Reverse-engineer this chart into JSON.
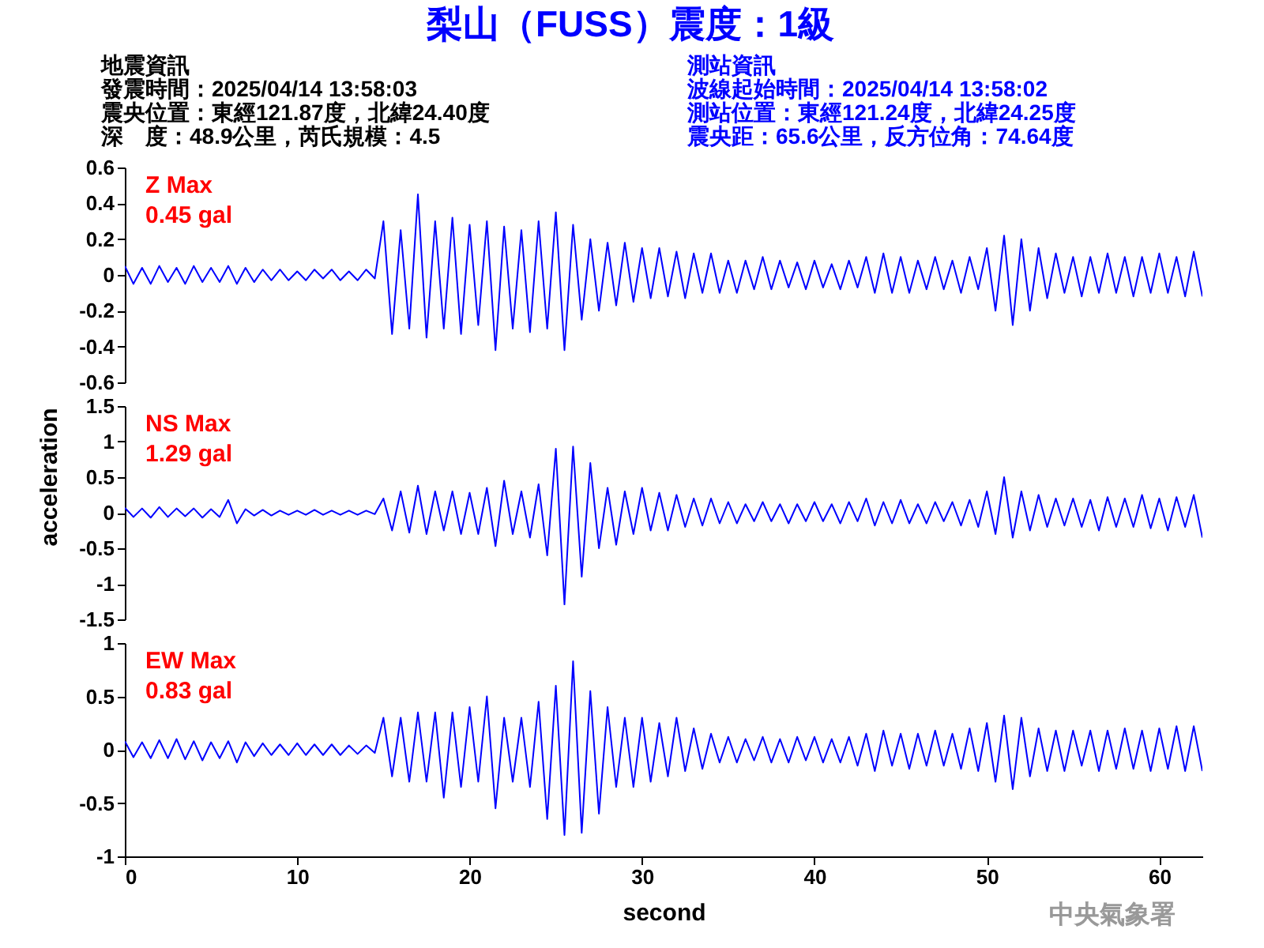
{
  "chart_data": [
    {
      "type": "line",
      "title": "梨山（FUSS）震度：1級",
      "annotations": [
        "地震資訊",
        "發震時間：2025/04/14 13:58:03",
        "震央位置：東經121.87度，北緯24.40度",
        "深　度：48.9公里，芮氏規模：4.5",
        "測站資訊",
        "波線起始時間：2025/04/14 13:58:02",
        "測站位置：東經121.24度，北緯24.25度",
        "震央距：65.6公里，反方位角：74.64度",
        "Z Max",
        "0.45 gal"
      ],
      "ylim": [
        -0.6,
        0.6
      ],
      "yticks": [
        -0.6,
        -0.4,
        -0.2,
        0,
        0.2,
        0.4,
        0.6
      ],
      "tick_labels": "y",
      "x": [
        0,
        0.5,
        1,
        1.5,
        2,
        2.5,
        3,
        3.5,
        4,
        4.5,
        5,
        5.5,
        6,
        6.5,
        7,
        7.5,
        8,
        8.5,
        9,
        9.5,
        10,
        10.5,
        11,
        11.5,
        12,
        12.5,
        13,
        13.5,
        14,
        14.5,
        15,
        15.5,
        16,
        16.5,
        17,
        17.5,
        18,
        18.5,
        19,
        19.5,
        20,
        20.5,
        21,
        21.5,
        22,
        22.5,
        23,
        23.5,
        24,
        24.5,
        25,
        25.5,
        26,
        26.5,
        27,
        27.5,
        28,
        28.5,
        29,
        29.5,
        30,
        30.5,
        31,
        31.5,
        32,
        32.5,
        33,
        33.5,
        34,
        34.5,
        35,
        35.5,
        36,
        36.5,
        37,
        37.5,
        38,
        38.5,
        39,
        39.5,
        40,
        40.5,
        41,
        41.5,
        42,
        42.5,
        43,
        43.5,
        44,
        44.5,
        45,
        45.5,
        46,
        46.5,
        47,
        47.5,
        48,
        48.5,
        49,
        49.5,
        50,
        50.5,
        51,
        51.5,
        52,
        52.5,
        53,
        53.5,
        54,
        54.5,
        55,
        55.5,
        56,
        56.5,
        57,
        57.5,
        58,
        58.5,
        59,
        59.5,
        60,
        60.5,
        61,
        61.5,
        62,
        62.5
      ],
      "series": [
        {
          "color": "#0000ff",
          "values": [
            0.05,
            -0.05,
            0.04,
            -0.05,
            0.05,
            -0.04,
            0.04,
            -0.05,
            0.05,
            -0.04,
            0.04,
            -0.04,
            0.05,
            -0.05,
            0.04,
            -0.04,
            0.03,
            -0.03,
            0.03,
            -0.03,
            0.02,
            -0.03,
            0.03,
            -0.02,
            0.03,
            -0.03,
            0.02,
            -0.03,
            0.03,
            -0.02,
            0.3,
            -0.33,
            0.25,
            -0.3,
            0.45,
            -0.35,
            0.3,
            -0.3,
            0.32,
            -0.33,
            0.28,
            -0.28,
            0.3,
            -0.42,
            0.27,
            -0.3,
            0.25,
            -0.32,
            0.3,
            -0.3,
            0.35,
            -0.42,
            0.28,
            -0.25,
            0.2,
            -0.2,
            0.18,
            -0.17,
            0.18,
            -0.15,
            0.15,
            -0.13,
            0.15,
            -0.12,
            0.13,
            -0.13,
            0.12,
            -0.1,
            0.12,
            -0.1,
            0.08,
            -0.1,
            0.08,
            -0.08,
            0.1,
            -0.08,
            0.08,
            -0.07,
            0.07,
            -0.08,
            0.08,
            -0.07,
            0.06,
            -0.08,
            0.08,
            -0.07,
            0.1,
            -0.1,
            0.12,
            -0.1,
            0.1,
            -0.1,
            0.08,
            -0.08,
            0.1,
            -0.08,
            0.08,
            -0.1,
            0.1,
            -0.08,
            0.15,
            -0.2,
            0.22,
            -0.28,
            0.2,
            -0.2,
            0.15,
            -0.13,
            0.12,
            -0.1,
            0.1,
            -0.12,
            0.1,
            -0.1,
            0.12,
            -0.1,
            0.1,
            -0.12,
            0.1,
            -0.1,
            0.12,
            -0.1,
            0.1,
            -0.12,
            0.13,
            -0.12
          ]
        }
      ]
    },
    {
      "type": "line",
      "ylabel": "acceleration",
      "annotations": [
        "NS Max",
        "1.29 gal"
      ],
      "ylim": [
        -1.5,
        1.5
      ],
      "yticks": [
        -1.5,
        -1,
        -0.5,
        0,
        0.5,
        1,
        1.5
      ],
      "tick_labels": "y",
      "x": [
        0,
        0.5,
        1,
        1.5,
        2,
        2.5,
        3,
        3.5,
        4,
        4.5,
        5,
        5.5,
        6,
        6.5,
        7,
        7.5,
        8,
        8.5,
        9,
        9.5,
        10,
        10.5,
        11,
        11.5,
        12,
        12.5,
        13,
        13.5,
        14,
        14.5,
        15,
        15.5,
        16,
        16.5,
        17,
        17.5,
        18,
        18.5,
        19,
        19.5,
        20,
        20.5,
        21,
        21.5,
        22,
        22.5,
        23,
        23.5,
        24,
        24.5,
        25,
        25.5,
        26,
        26.5,
        27,
        27.5,
        28,
        28.5,
        29,
        29.5,
        30,
        30.5,
        31,
        31.5,
        32,
        32.5,
        33,
        33.5,
        34,
        34.5,
        35,
        35.5,
        36,
        36.5,
        37,
        37.5,
        38,
        38.5,
        39,
        39.5,
        40,
        40.5,
        41,
        41.5,
        42,
        42.5,
        43,
        43.5,
        44,
        44.5,
        45,
        45.5,
        46,
        46.5,
        47,
        47.5,
        48,
        48.5,
        49,
        49.5,
        50,
        50.5,
        51,
        51.5,
        52,
        52.5,
        53,
        53.5,
        54,
        54.5,
        55,
        55.5,
        56,
        56.5,
        57,
        57.5,
        58,
        58.5,
        59,
        59.5,
        60,
        60.5,
        61,
        61.5,
        62,
        62.5
      ],
      "series": [
        {
          "color": "#0000ff",
          "values": [
            0.07,
            -0.06,
            0.06,
            -0.07,
            0.08,
            -0.06,
            0.06,
            -0.05,
            0.06,
            -0.07,
            0.05,
            -0.06,
            0.18,
            -0.15,
            0.05,
            -0.04,
            0.04,
            -0.04,
            0.03,
            -0.03,
            0.03,
            -0.03,
            0.04,
            -0.03,
            0.03,
            -0.03,
            0.03,
            -0.03,
            0.03,
            -0.02,
            0.2,
            -0.25,
            0.3,
            -0.28,
            0.38,
            -0.3,
            0.3,
            -0.25,
            0.3,
            -0.3,
            0.28,
            -0.3,
            0.35,
            -0.47,
            0.45,
            -0.3,
            0.3,
            -0.35,
            0.4,
            -0.6,
            0.9,
            -1.29,
            0.93,
            -0.9,
            0.7,
            -0.5,
            0.35,
            -0.45,
            0.3,
            -0.3,
            0.35,
            -0.25,
            0.28,
            -0.25,
            0.25,
            -0.2,
            0.2,
            -0.18,
            0.2,
            -0.15,
            0.15,
            -0.15,
            0.12,
            -0.12,
            0.15,
            -0.12,
            0.12,
            -0.15,
            0.12,
            -0.12,
            0.15,
            -0.12,
            0.12,
            -0.15,
            0.15,
            -0.12,
            0.2,
            -0.18,
            0.15,
            -0.15,
            0.18,
            -0.15,
            0.12,
            -0.15,
            0.15,
            -0.12,
            0.15,
            -0.18,
            0.18,
            -0.2,
            0.3,
            -0.3,
            0.5,
            -0.35,
            0.3,
            -0.25,
            0.25,
            -0.2,
            0.2,
            -0.18,
            0.2,
            -0.2,
            0.18,
            -0.25,
            0.22,
            -0.2,
            0.2,
            -0.2,
            0.25,
            -0.22,
            0.2,
            -0.25,
            0.22,
            -0.2,
            0.25,
            -0.35
          ]
        }
      ]
    },
    {
      "type": "line",
      "xlabel": "second",
      "annotations": [
        "EW Max",
        "0.83 gal",
        "中央氣象署"
      ],
      "xlim": [
        0,
        62.5
      ],
      "xticks": [
        0,
        10,
        20,
        30,
        40,
        50,
        60
      ],
      "ylim": [
        -1,
        1
      ],
      "yticks": [
        -1,
        -0.5,
        0,
        0.5,
        1
      ],
      "x": [
        0,
        0.5,
        1,
        1.5,
        2,
        2.5,
        3,
        3.5,
        4,
        4.5,
        5,
        5.5,
        6,
        6.5,
        7,
        7.5,
        8,
        8.5,
        9,
        9.5,
        10,
        10.5,
        11,
        11.5,
        12,
        12.5,
        13,
        13.5,
        14,
        14.5,
        15,
        15.5,
        16,
        16.5,
        17,
        17.5,
        18,
        18.5,
        19,
        19.5,
        20,
        20.5,
        21,
        21.5,
        22,
        22.5,
        23,
        23.5,
        24,
        24.5,
        25,
        25.5,
        26,
        26.5,
        27,
        27.5,
        28,
        28.5,
        29,
        29.5,
        30,
        30.5,
        31,
        31.5,
        32,
        32.5,
        33,
        33.5,
        34,
        34.5,
        35,
        35.5,
        36,
        36.5,
        37,
        37.5,
        38,
        38.5,
        39,
        39.5,
        40,
        40.5,
        41,
        41.5,
        42,
        42.5,
        43,
        43.5,
        44,
        44.5,
        45,
        45.5,
        46,
        46.5,
        47,
        47.5,
        48,
        48.5,
        49,
        49.5,
        50,
        50.5,
        51,
        51.5,
        52,
        52.5,
        53,
        53.5,
        54,
        54.5,
        55,
        55.5,
        56,
        56.5,
        57,
        57.5,
        58,
        58.5,
        59,
        59.5,
        60,
        60.5,
        61,
        61.5,
        62,
        62.5
      ],
      "series": [
        {
          "color": "#0000ff",
          "values": [
            0.08,
            -0.07,
            0.07,
            -0.08,
            0.09,
            -0.08,
            0.1,
            -0.09,
            0.08,
            -0.1,
            0.07,
            -0.08,
            0.08,
            -0.12,
            0.07,
            -0.06,
            0.06,
            -0.05,
            0.05,
            -0.05,
            0.06,
            -0.05,
            0.05,
            -0.05,
            0.05,
            -0.05,
            0.04,
            -0.04,
            0.04,
            -0.03,
            0.3,
            -0.25,
            0.3,
            -0.3,
            0.35,
            -0.3,
            0.35,
            -0.45,
            0.35,
            -0.35,
            0.4,
            -0.3,
            0.5,
            -0.55,
            0.3,
            -0.3,
            0.3,
            -0.35,
            0.45,
            -0.65,
            0.6,
            -0.8,
            0.83,
            -0.78,
            0.55,
            -0.6,
            0.4,
            -0.35,
            0.3,
            -0.35,
            0.3,
            -0.3,
            0.25,
            -0.25,
            0.3,
            -0.2,
            0.2,
            -0.18,
            0.15,
            -0.12,
            0.12,
            -0.12,
            0.1,
            -0.1,
            0.12,
            -0.12,
            0.1,
            -0.12,
            0.12,
            -0.1,
            0.12,
            -0.12,
            0.1,
            -0.12,
            0.12,
            -0.15,
            0.15,
            -0.2,
            0.18,
            -0.15,
            0.15,
            -0.18,
            0.15,
            -0.15,
            0.18,
            -0.15,
            0.15,
            -0.18,
            0.2,
            -0.2,
            0.25,
            -0.3,
            0.32,
            -0.37,
            0.3,
            -0.25,
            0.2,
            -0.2,
            0.18,
            -0.2,
            0.18,
            -0.15,
            0.18,
            -0.2,
            0.18,
            -0.18,
            0.2,
            -0.18,
            0.18,
            -0.2,
            0.2,
            -0.18,
            0.22,
            -0.2,
            0.22,
            -0.2
          ]
        }
      ]
    }
  ]
}
